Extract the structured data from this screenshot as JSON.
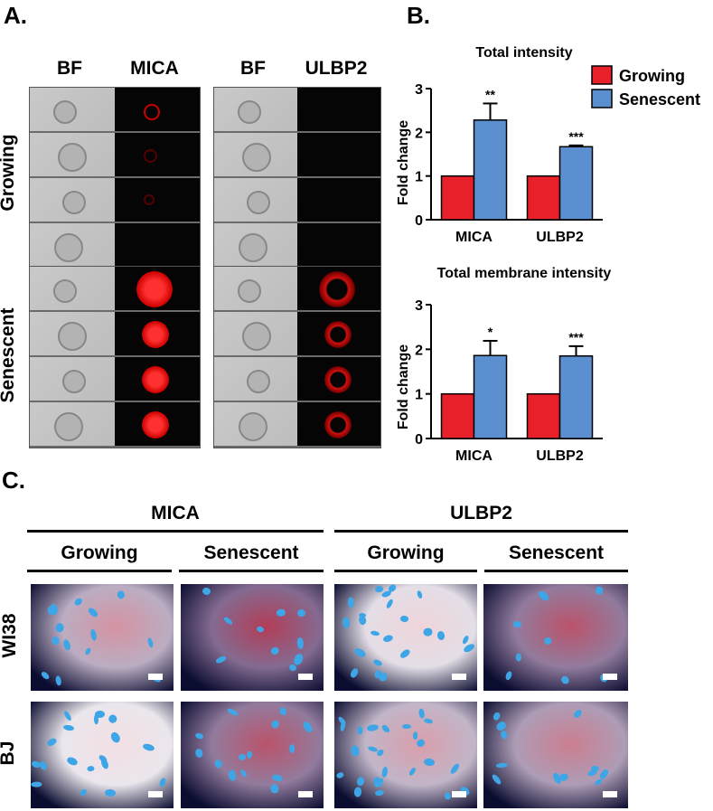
{
  "panels": {
    "a": "A.",
    "b": "B.",
    "c": "C."
  },
  "panel_a": {
    "left_headers": [
      "BF",
      "MICA"
    ],
    "right_headers": [
      "BF",
      "ULBP2"
    ],
    "row_labels": [
      "Growing",
      "Senescent"
    ]
  },
  "panel_c": {
    "groups": [
      "MICA",
      "ULBP2"
    ],
    "conditions": [
      "Growing",
      "Senescent",
      "Growing",
      "Senescent"
    ],
    "row_labels": [
      "WI38",
      "BJ"
    ]
  },
  "colors": {
    "growing": "#e8202a",
    "senescent": "#5b8fd0"
  },
  "chart_data": [
    {
      "type": "bar",
      "title": "Total intensity",
      "ylabel": "Fold change",
      "xlabel": "",
      "categories": [
        "MICA",
        "ULBP2"
      ],
      "ylim": [
        0,
        3
      ],
      "yticks": [
        "0",
        "1",
        "2",
        "3"
      ],
      "legend": "top-right",
      "series": [
        {
          "name": "Growing",
          "values": [
            1.0,
            1.0
          ],
          "errors": [
            0,
            0
          ]
        },
        {
          "name": "Senescent",
          "values": [
            2.28,
            1.67
          ],
          "errors": [
            0.38,
            0.03
          ]
        }
      ],
      "annotations": [
        "**",
        "***"
      ]
    },
    {
      "type": "bar",
      "title": "Total membrane intensity",
      "ylabel": "Fold change",
      "xlabel": "",
      "categories": [
        "MICA",
        "ULBP2"
      ],
      "ylim": [
        0,
        3
      ],
      "yticks": [
        "0",
        "1",
        "2",
        "3"
      ],
      "series": [
        {
          "name": "Growing",
          "values": [
            1.0,
            1.0
          ],
          "errors": [
            0,
            0
          ]
        },
        {
          "name": "Senescent",
          "values": [
            1.86,
            1.85
          ],
          "errors": [
            0.33,
            0.22
          ]
        }
      ],
      "annotations": [
        "*",
        "***"
      ]
    }
  ]
}
